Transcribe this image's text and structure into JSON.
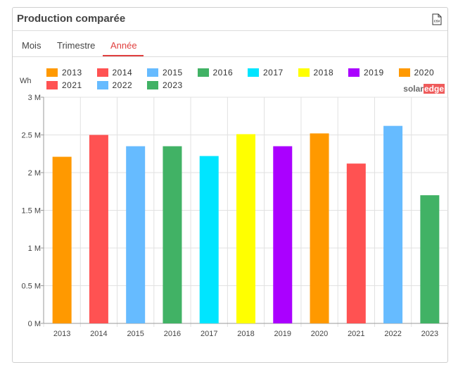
{
  "panel": {
    "title": "Production comparée",
    "export_icon": "csv-file-icon",
    "export_icon_text": "CSV"
  },
  "tabs": [
    {
      "label": "Mois",
      "active": false
    },
    {
      "label": "Trimestre",
      "active": false
    },
    {
      "label": "Année",
      "active": true
    }
  ],
  "brand": {
    "prefix": "solar",
    "highlight": "edge"
  },
  "colors": {
    "accent": "#e0403f"
  },
  "chart_data": {
    "type": "bar",
    "ylabel": "Wh",
    "ylim": [
      0,
      3000000
    ],
    "y_ticks": [
      {
        "value": 0,
        "label": "0 M"
      },
      {
        "value": 500000,
        "label": "0.5 M"
      },
      {
        "value": 1000000,
        "label": "1 M"
      },
      {
        "value": 1500000,
        "label": "1.5 M"
      },
      {
        "value": 2000000,
        "label": "2 M"
      },
      {
        "value": 2500000,
        "label": "2.5 M"
      },
      {
        "value": 3000000,
        "label": "3 M"
      }
    ],
    "categories": [
      "2013",
      "2014",
      "2015",
      "2016",
      "2017",
      "2018",
      "2019",
      "2020",
      "2021",
      "2022",
      "2023"
    ],
    "values": [
      2210000,
      2500000,
      2350000,
      2350000,
      2220000,
      2510000,
      2350000,
      2520000,
      2120000,
      2620000,
      1700000
    ],
    "series": [
      {
        "name": "2013",
        "color": "#ff9900"
      },
      {
        "name": "2014",
        "color": "#ff5252"
      },
      {
        "name": "2015",
        "color": "#66bbff"
      },
      {
        "name": "2016",
        "color": "#41b265"
      },
      {
        "name": "2017",
        "color": "#00e5ff"
      },
      {
        "name": "2018",
        "color": "#ffff00"
      },
      {
        "name": "2019",
        "color": "#aa00ff"
      },
      {
        "name": "2020",
        "color": "#ff9900"
      },
      {
        "name": "2021",
        "color": "#ff5252"
      },
      {
        "name": "2022",
        "color": "#66bbff"
      },
      {
        "name": "2023",
        "color": "#41b265"
      }
    ],
    "legend_position": "top",
    "grid": true
  }
}
